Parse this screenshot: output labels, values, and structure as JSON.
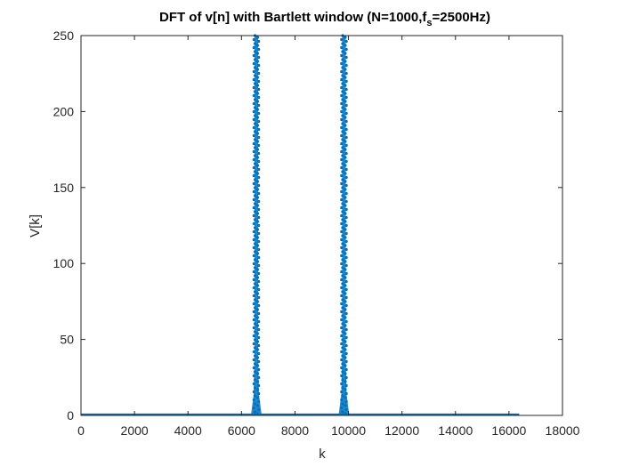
{
  "chart_data": {
    "type": "line",
    "title_main": "DFT of v[n] with Bartlett window (N=1000,f",
    "title_sub": "s",
    "title_tail": "=2500Hz)",
    "xlabel": "k",
    "ylabel": "V[k]",
    "xlim": [
      0,
      18000
    ],
    "ylim": [
      0,
      250
    ],
    "xticks": [
      0,
      2000,
      4000,
      6000,
      8000,
      10000,
      12000,
      14000,
      16000,
      18000
    ],
    "yticks": [
      0,
      50,
      100,
      150,
      200,
      250
    ],
    "x_range": [
      0,
      16383
    ],
    "peaks": [
      {
        "k": 6554,
        "value": 250
      },
      {
        "k": 9830,
        "value": 250
      }
    ],
    "baseline": 0.5,
    "marker": "dot",
    "grid": false,
    "box": true,
    "colors": {
      "series": "#0072BD",
      "axes": "#262626"
    }
  }
}
